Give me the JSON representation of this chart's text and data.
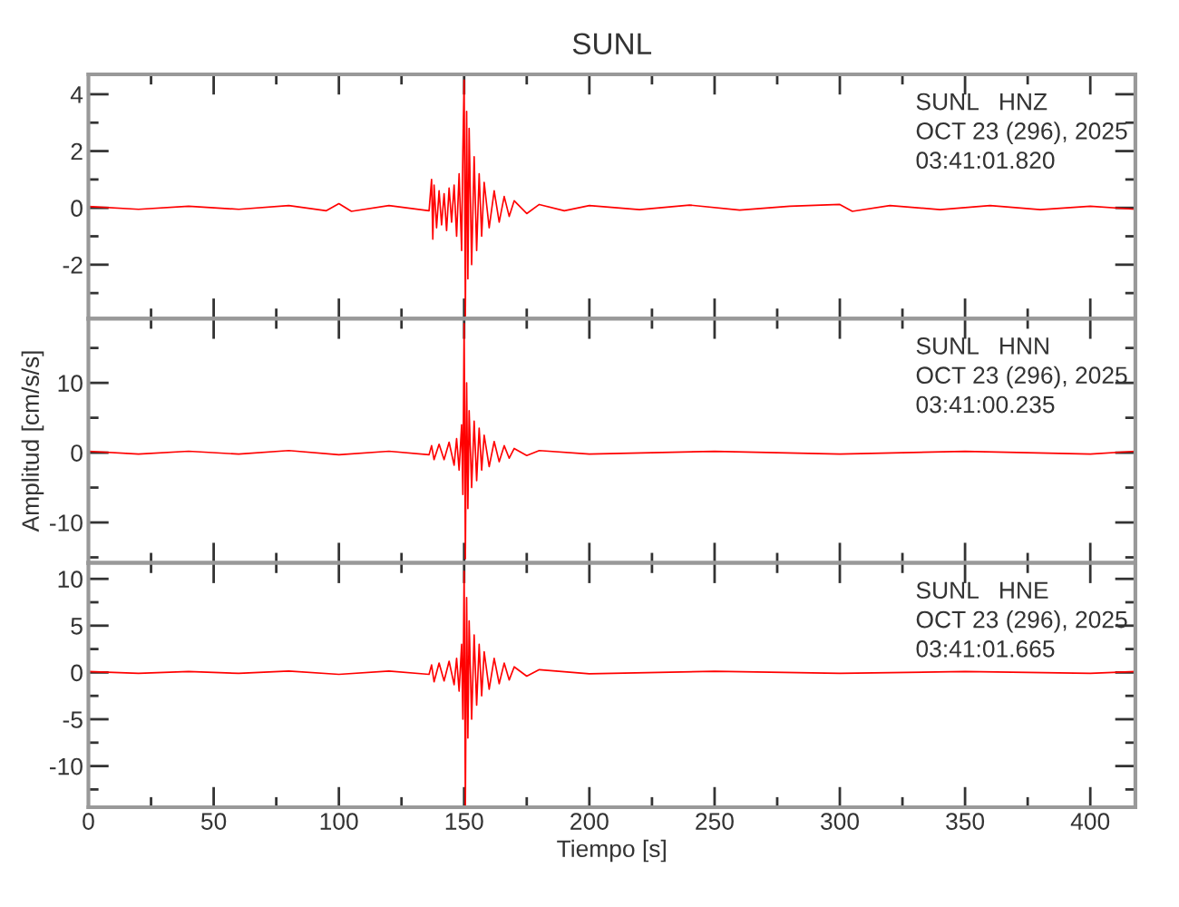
{
  "chart_data": [
    {
      "type": "line",
      "title": "SUNL",
      "annotations": [
        "SUNL   HNZ",
        "OCT 23 (296), 2025",
        "03:41:01.820"
      ],
      "xlim": [
        0,
        418
      ],
      "xticks": [
        0,
        {
          "value": 25,
          "label": null
        },
        50,
        {
          "value": 75,
          "label": null
        },
        100,
        {
          "value": 125,
          "label": null
        },
        150,
        {
          "value": 175,
          "label": null
        },
        200,
        {
          "value": 225,
          "label": null
        },
        250,
        {
          "value": 275,
          "label": null
        },
        300,
        {
          "value": 325,
          "label": null
        },
        350,
        {
          "value": 375,
          "label": null
        },
        400
      ],
      "ylim": [
        -3.9,
        4.7
      ],
      "yticks": [
        {
          "value": -3,
          "label": null
        },
        -2,
        {
          "value": -1,
          "label": null
        },
        0,
        {
          "value": 1,
          "label": null
        },
        2,
        {
          "value": 3,
          "label": null
        },
        4
      ],
      "tick_labels": "y",
      "grid": false,
      "line_style": "solid",
      "marker": "none",
      "x": [
        0,
        20,
        40,
        60,
        80,
        95,
        100,
        105,
        120,
        136,
        137,
        137.5,
        138,
        139,
        140,
        141,
        142,
        143,
        144,
        145,
        146,
        147,
        148,
        149,
        149.5,
        150,
        150.5,
        151,
        151.5,
        152,
        153,
        154,
        155,
        156,
        157,
        158,
        160,
        162,
        164,
        166,
        168,
        170,
        175,
        180,
        190,
        200,
        220,
        240,
        260,
        280,
        300,
        305,
        320,
        340,
        360,
        380,
        400,
        418
      ],
      "series": [
        {
          "color": "#ff0000",
          "values": [
            0.05,
            -0.05,
            0.06,
            -0.05,
            0.08,
            -0.1,
            0.15,
            -0.12,
            0.08,
            -0.1,
            1.0,
            -1.1,
            0.8,
            -0.7,
            0.6,
            -0.6,
            0.5,
            -0.8,
            0.7,
            -0.5,
            0.8,
            -1.0,
            1.2,
            -1.5,
            2.0,
            4.5,
            -3.8,
            3.4,
            -2.5,
            2.8,
            -2.0,
            1.8,
            -1.5,
            1.2,
            -1.0,
            0.9,
            -0.7,
            0.6,
            -0.5,
            0.4,
            -0.3,
            0.25,
            -0.2,
            0.12,
            -0.1,
            0.08,
            -0.06,
            0.1,
            -0.08,
            0.06,
            0.12,
            -0.12,
            0.08,
            -0.06,
            0.08,
            -0.06,
            0.06,
            -0.05
          ]
        }
      ]
    },
    {
      "type": "line",
      "ylabel": "Amplitud [cm/s/s]",
      "xlim": [
        0,
        418
      ],
      "xticks": [
        0,
        {
          "value": 25,
          "label": null
        },
        50,
        {
          "value": 75,
          "label": null
        },
        100,
        {
          "value": 125,
          "label": null
        },
        150,
        {
          "value": 175,
          "label": null
        },
        200,
        {
          "value": 225,
          "label": null
        },
        250,
        {
          "value": 275,
          "label": null
        },
        300,
        {
          "value": 325,
          "label": null
        },
        350,
        {
          "value": 375,
          "label": null
        },
        400
      ],
      "ylim": [
        -15.8,
        19.2
      ],
      "yticks": [
        {
          "value": -15,
          "label": null
        },
        -10,
        {
          "value": -5,
          "label": null
        },
        0,
        {
          "value": 5,
          "label": null
        },
        10,
        {
          "value": 15,
          "label": null
        }
      ],
      "tick_labels": "y",
      "grid": false,
      "line_style": "solid",
      "marker": "none",
      "annotations": [
        "SUNL   HNN",
        "OCT 23 (296), 2025",
        "03:41:00.235"
      ],
      "x": [
        0,
        20,
        40,
        60,
        80,
        100,
        120,
        136,
        137,
        138,
        140,
        142,
        144,
        146,
        147,
        148,
        149,
        149.5,
        150,
        150.5,
        151,
        151.5,
        152,
        153,
        154,
        155,
        156,
        157,
        158,
        160,
        162,
        164,
        166,
        168,
        170,
        175,
        180,
        200,
        250,
        300,
        350,
        400,
        418
      ],
      "series": [
        {
          "color": "#ff0000",
          "values": [
            0.2,
            -0.2,
            0.2,
            -0.2,
            0.3,
            -0.3,
            0.2,
            -0.3,
            1.0,
            -1.0,
            1.2,
            -1.0,
            1.5,
            -1.8,
            2.0,
            -2.5,
            4.0,
            -6.0,
            18.5,
            -15.2,
            10.0,
            -8.0,
            6.0,
            -5.0,
            4.5,
            -4.0,
            3.5,
            -2.5,
            2.5,
            -2.0,
            1.6,
            -1.3,
            1.0,
            -0.8,
            0.6,
            -0.4,
            0.3,
            -0.2,
            0.2,
            -0.2,
            0.2,
            -0.2,
            0.2
          ]
        }
      ]
    },
    {
      "type": "line",
      "xlabel": "Tiempo [s]",
      "xlim": [
        0,
        418
      ],
      "xticks": [
        0,
        {
          "value": 25,
          "label": null
        },
        50,
        {
          "value": 75,
          "label": null
        },
        100,
        {
          "value": 125,
          "label": null
        },
        150,
        {
          "value": 175,
          "label": null
        },
        200,
        {
          "value": 225,
          "label": null
        },
        250,
        {
          "value": 275,
          "label": null
        },
        300,
        {
          "value": 325,
          "label": null
        },
        350,
        {
          "value": 375,
          "label": null
        },
        400
      ],
      "ylim": [
        -14.4,
        11.7
      ],
      "yticks": [
        {
          "value": -12.5,
          "label": null
        },
        -10,
        {
          "value": -7.5,
          "label": null
        },
        -5,
        {
          "value": -2.5,
          "label": null
        },
        0,
        {
          "value": 2.5,
          "label": null
        },
        5,
        {
          "value": 7.5,
          "label": null
        },
        10
      ],
      "grid": false,
      "line_style": "solid",
      "marker": "none",
      "annotations": [
        "SUNL   HNE",
        "OCT 23 (296), 2025",
        "03:41:01.665"
      ],
      "x": [
        0,
        20,
        40,
        60,
        80,
        100,
        120,
        136,
        137,
        138,
        140,
        142,
        144,
        146,
        147,
        148,
        149,
        149.5,
        150,
        150.5,
        151,
        151.5,
        152,
        153,
        154,
        155,
        156,
        157,
        158,
        160,
        162,
        164,
        166,
        168,
        170,
        175,
        180,
        200,
        250,
        300,
        350,
        400,
        418
      ],
      "series": [
        {
          "color": "#ff0000",
          "values": [
            0.1,
            -0.1,
            0.1,
            -0.1,
            0.15,
            -0.2,
            0.15,
            -0.2,
            0.8,
            -1.0,
            1.0,
            -0.9,
            1.2,
            -1.3,
            1.5,
            -2.0,
            3.0,
            -5.0,
            10.8,
            -14.2,
            8.0,
            -7.0,
            5.5,
            -5.0,
            4.0,
            -3.5,
            3.0,
            -2.5,
            2.2,
            -1.8,
            1.5,
            -1.2,
            1.0,
            -0.8,
            0.6,
            -0.4,
            0.3,
            -0.15,
            0.12,
            -0.1,
            0.1,
            -0.1,
            0.1
          ]
        }
      ]
    }
  ]
}
